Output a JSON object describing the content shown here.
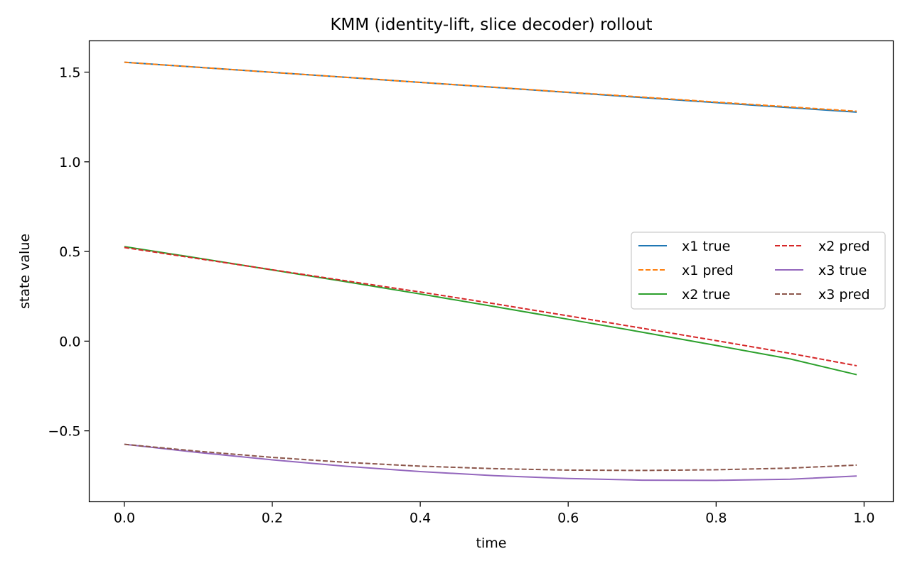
{
  "chart_data": {
    "type": "line",
    "title": "KMM (identity-lift, slice decoder) rollout",
    "xlabel": "time",
    "ylabel": "state value",
    "xlim": [
      -0.0475,
      1.0395
    ],
    "ylim": [
      -0.8955,
      1.6745
    ],
    "xticks": [
      0.0,
      0.2,
      0.4,
      0.6,
      0.8,
      1.0
    ],
    "xtick_labels": [
      "0.0",
      "0.2",
      "0.4",
      "0.6",
      "0.8",
      "1.0"
    ],
    "yticks": [
      -0.5,
      0.0,
      0.5,
      1.0,
      1.5
    ],
    "ytick_labels": [
      "−0.5",
      "0.0",
      "0.5",
      "1.0",
      "1.5"
    ],
    "grid": false,
    "legend_position": "center-right",
    "legend_columns": 2,
    "x": [
      0.0,
      0.1,
      0.2,
      0.3,
      0.4,
      0.5,
      0.6,
      0.7,
      0.8,
      0.9,
      0.99
    ],
    "series": [
      {
        "name": "x1 true",
        "color": "#1f77b4",
        "style": "solid",
        "values": [
          1.555,
          1.527,
          1.499,
          1.471,
          1.443,
          1.415,
          1.387,
          1.358,
          1.33,
          1.302,
          1.277
        ]
      },
      {
        "name": "x1 pred",
        "color": "#ff7f0e",
        "style": "dashed",
        "values": [
          1.555,
          1.527,
          1.499,
          1.471,
          1.443,
          1.416,
          1.388,
          1.361,
          1.333,
          1.306,
          1.282
        ]
      },
      {
        "name": "x2 true",
        "color": "#2ca02c",
        "style": "solid",
        "values": [
          0.527,
          0.463,
          0.397,
          0.331,
          0.263,
          0.193,
          0.122,
          0.05,
          -0.024,
          -0.099,
          -0.187
        ]
      },
      {
        "name": "x2 pred",
        "color": "#d62728",
        "style": "dashed",
        "values": [
          0.522,
          0.46,
          0.398,
          0.336,
          0.274,
          0.209,
          0.141,
          0.072,
          0.003,
          -0.068,
          -0.137
        ]
      },
      {
        "name": "x3 true",
        "color": "#9467bd",
        "style": "solid",
        "values": [
          -0.575,
          -0.621,
          -0.662,
          -0.698,
          -0.727,
          -0.75,
          -0.766,
          -0.775,
          -0.776,
          -0.77,
          -0.752
        ]
      },
      {
        "name": "x3 pred",
        "color": "#8c564b",
        "style": "dashed",
        "values": [
          -0.575,
          -0.614,
          -0.648,
          -0.676,
          -0.697,
          -0.711,
          -0.719,
          -0.721,
          -0.717,
          -0.708,
          -0.691
        ]
      }
    ]
  }
}
